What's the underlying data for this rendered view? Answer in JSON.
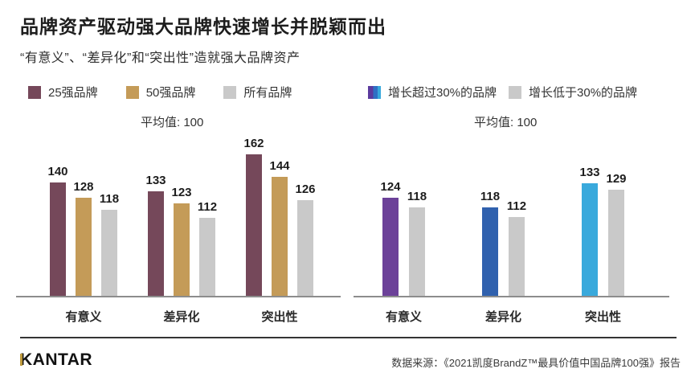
{
  "header": {
    "title": "品牌资产驱动强大品牌快速增长并脱颖而出",
    "subtitle": "“有意义”、“差异化”和“突出性”造就强大品牌资产"
  },
  "legends": {
    "left": {
      "items": [
        {
          "label": "25强品牌",
          "color": "#75485A"
        },
        {
          "label": "50强品牌",
          "color": "#C49B58"
        },
        {
          "label": "所有品牌",
          "color": "#C9C9C9"
        }
      ]
    },
    "right": {
      "items": [
        {
          "label": "增长超过30%的品牌",
          "swatch_colors": [
            "#5B3B9E",
            "#2F6FC4",
            "#39A9DC"
          ]
        },
        {
          "label": "增长低于30%的品牌",
          "color": "#C9C9C9"
        }
      ]
    }
  },
  "chart_data": [
    {
      "type": "bar",
      "annotation": "平均值: 100",
      "baseline_value": 100,
      "categories": [
        "有意义",
        "差异化",
        "突出性"
      ],
      "series": [
        {
          "name": "25强品牌",
          "color": "#75485A",
          "values": [
            140,
            133,
            162
          ]
        },
        {
          "name": "50强品牌",
          "color": "#C49B58",
          "values": [
            128,
            123,
            144
          ]
        },
        {
          "name": "所有品牌",
          "color": "#C9C9C9",
          "values": [
            118,
            112,
            126
          ]
        }
      ],
      "ylim": [
        50,
        185
      ],
      "grid": false,
      "legend_position": "top"
    },
    {
      "type": "bar",
      "annotation": "平均值: 100",
      "baseline_value": 100,
      "categories": [
        "有意义",
        "差异化",
        "突出性"
      ],
      "series": [
        {
          "name": "增长超过30%的品牌",
          "colors": [
            "#6C4199",
            "#3061AE",
            "#39A9DC"
          ],
          "values": [
            124,
            118,
            133
          ]
        },
        {
          "name": "增长低于30%的品牌",
          "color": "#C9C9C9",
          "values": [
            118,
            112,
            129
          ]
        }
      ],
      "ylim": [
        63,
        169
      ],
      "grid": false,
      "legend_position": "top"
    }
  ],
  "footer": {
    "logo_text": "KANTAR",
    "logo_accent_color": "#BE993B",
    "source": "数据来源：《2021凯度BrandZ™最具价值中国品牌100强》报告"
  }
}
